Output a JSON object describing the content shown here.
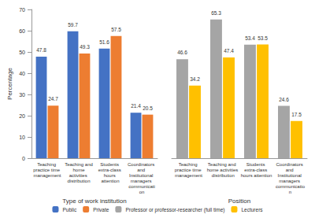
{
  "chart_data": [
    {
      "type": "bar",
      "xlabel": "Type of work institution",
      "ylabel": "Percentage",
      "categories": [
        "Teaching practice time management",
        "Teaching and home activities distribution",
        "Students extra-class hours attention",
        "Coordinators and Institutional managers communication"
      ],
      "series": [
        {
          "name": "Public",
          "color": "#4472c4",
          "values": [
            47.8,
            59.7,
            51.6,
            21.4
          ]
        },
        {
          "name": "Private",
          "color": "#ed7d31",
          "values": [
            24.7,
            49.3,
            57.5,
            20.5
          ]
        }
      ],
      "ylim": [
        0,
        70
      ],
      "yticks": [
        0,
        10,
        20,
        30,
        40,
        50,
        60,
        70
      ],
      "grid": false,
      "data_labels": true,
      "legend": "bottom"
    },
    {
      "type": "bar",
      "xlabel": "Position",
      "categories": [
        "Teaching practice time management",
        "Teaching and home activities distribution",
        "Students extra-class hours attention",
        "Coordinators and Institutional managers communication"
      ],
      "series": [
        {
          "name": "Professor or professor-researcher (full time)",
          "color": "#a5a5a5",
          "values": [
            46.6,
            65.3,
            53.4,
            24.6
          ]
        },
        {
          "name": "Lecturers",
          "color": "#ffc000",
          "values": [
            34.2,
            47.4,
            53.5,
            17.5
          ]
        }
      ],
      "ylim": [
        0,
        70
      ],
      "yticks": [
        0,
        10,
        20,
        30,
        40,
        50,
        60,
        70
      ],
      "grid": false,
      "data_labels": true,
      "legend": "bottom",
      "tick_labels": "x"
    }
  ]
}
